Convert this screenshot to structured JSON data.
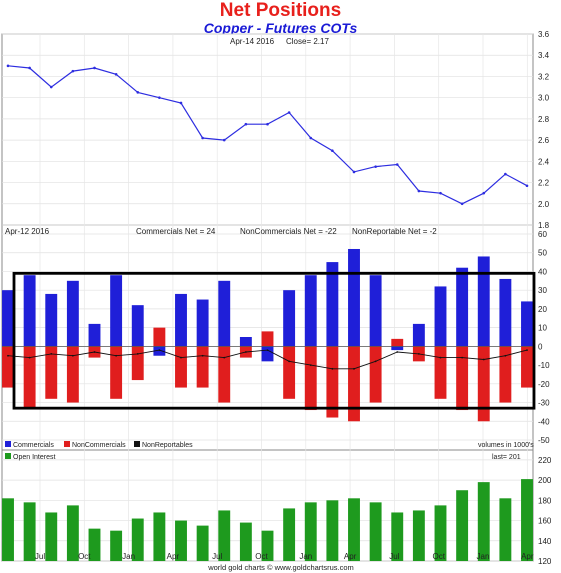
{
  "title": "Net Positions",
  "subtitle": "Copper - Futures COTs",
  "footer": "world gold charts © www.goldchartsrus.com",
  "x_axis": {
    "labels": [
      "Jul",
      "Oct",
      "Jan",
      "Apr",
      "Jul",
      "Oct",
      "Jan",
      "Apr",
      "Jul",
      "Oct",
      "Jan",
      "Apr"
    ]
  },
  "price_panel": {
    "caption_date": "Apr-14 2016",
    "caption_close": "Close= 2.17",
    "ylim": [
      1.8,
      3.6
    ],
    "ticks": [
      "3.6",
      "3.4",
      "3.2",
      "3.0",
      "2.8",
      "2.6",
      "2.4",
      "2.2",
      "2.0",
      "1.8"
    ],
    "line_color": "#2d2de0"
  },
  "cot_panel": {
    "caption_date": "Apr-12 2016",
    "caption_commercials": "Commercials Net = 24",
    "caption_noncommercials": "NonCommercials Net = -22",
    "caption_nonreportables": "NonReportable Net = -2",
    "ylim": [
      -50,
      60
    ],
    "ticks": [
      "60",
      "50",
      "40",
      "30",
      "20",
      "10",
      "0",
      "-10",
      "-20",
      "-30",
      "-40",
      "-50"
    ],
    "legend": [
      {
        "label": "Commercials",
        "color": "#1f1fd8"
      },
      {
        "label": "NonCommercials",
        "color": "#e01e1e"
      },
      {
        "label": "NonReportables",
        "color": "#111111"
      }
    ],
    "units_note": "volumes in 1000's",
    "annotation_box": "highlight rectangle from -33 to 39"
  },
  "oi_panel": {
    "legend_label": "Open Interest",
    "legend_color": "#1e9a1e",
    "last_label": "last= 201",
    "ylim": [
      120,
      210
    ],
    "ticks": [
      "220",
      "200",
      "180",
      "160",
      "140",
      "120"
    ]
  },
  "chart_data": [
    {
      "type": "line",
      "title": "Copper - Futures COTs",
      "name": "Close",
      "ylim": [
        1.8,
        3.6
      ],
      "x": [
        "2014-04",
        "2014-05",
        "2014-06",
        "2014-07",
        "2014-08",
        "2014-09",
        "2014-10",
        "2014-11",
        "2014-12",
        "2015-01",
        "2015-02",
        "2015-03",
        "2015-04",
        "2015-05",
        "2015-06",
        "2015-07",
        "2015-08",
        "2015-09",
        "2015-10",
        "2015-11",
        "2015-12",
        "2016-01",
        "2016-02",
        "2016-03",
        "2016-04"
      ],
      "values": [
        3.3,
        3.28,
        3.1,
        3.25,
        3.28,
        3.22,
        3.05,
        3.0,
        2.95,
        2.62,
        2.6,
        2.75,
        2.75,
        2.86,
        2.62,
        2.5,
        2.3,
        2.35,
        2.37,
        2.12,
        2.1,
        2.0,
        2.1,
        2.28,
        2.17
      ]
    },
    {
      "type": "bar",
      "title": "Net Positions",
      "ylim": [
        -50,
        60
      ],
      "x": [
        "2014-04",
        "2014-05",
        "2014-06",
        "2014-07",
        "2014-08",
        "2014-09",
        "2014-10",
        "2014-11",
        "2014-12",
        "2015-01",
        "2015-02",
        "2015-03",
        "2015-04",
        "2015-05",
        "2015-06",
        "2015-07",
        "2015-08",
        "2015-09",
        "2015-10",
        "2015-11",
        "2015-12",
        "2016-01",
        "2016-02",
        "2016-03",
        "2016-04"
      ],
      "series": [
        {
          "name": "Commercials",
          "values": [
            30,
            38,
            28,
            35,
            12,
            38,
            22,
            -5,
            28,
            25,
            35,
            5,
            -8,
            30,
            38,
            45,
            52,
            38,
            -2,
            12,
            32,
            42,
            48,
            36,
            24
          ]
        },
        {
          "name": "NonCommercials",
          "values": [
            -22,
            -33,
            -28,
            -30,
            -6,
            -28,
            -18,
            10,
            -22,
            -22,
            -30,
            -6,
            8,
            -28,
            -34,
            -38,
            -40,
            -30,
            4,
            -8,
            -28,
            -34,
            -40,
            -30,
            -22
          ]
        },
        {
          "name": "NonReportables",
          "values": [
            -5,
            -6,
            -4,
            -5,
            -3,
            -5,
            -4,
            -2,
            -6,
            -5,
            -6,
            -3,
            -2,
            -8,
            -10,
            -12,
            -12,
            -8,
            -3,
            -4,
            -6,
            -6,
            -7,
            -5,
            -2
          ]
        }
      ]
    },
    {
      "type": "bar",
      "name": "Open Interest",
      "ylim": [
        120,
        210
      ],
      "x": [
        "2014-04",
        "2014-05",
        "2014-06",
        "2014-07",
        "2014-08",
        "2014-09",
        "2014-10",
        "2014-11",
        "2014-12",
        "2015-01",
        "2015-02",
        "2015-03",
        "2015-04",
        "2015-05",
        "2015-06",
        "2015-07",
        "2015-08",
        "2015-09",
        "2015-10",
        "2015-11",
        "2015-12",
        "2016-01",
        "2016-02",
        "2016-03",
        "2016-04"
      ],
      "values": [
        182,
        178,
        168,
        175,
        152,
        150,
        162,
        168,
        160,
        155,
        170,
        158,
        150,
        172,
        178,
        180,
        182,
        178,
        168,
        170,
        175,
        190,
        198,
        182,
        201
      ]
    }
  ]
}
